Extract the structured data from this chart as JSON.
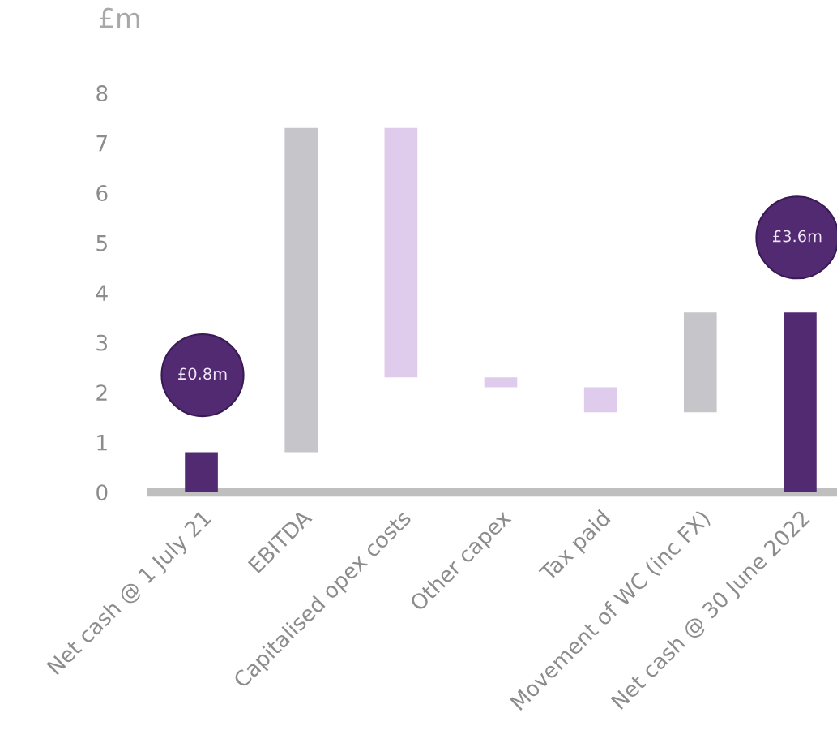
{
  "chart_data": {
    "type": "bar",
    "ylabel": "£m",
    "categories": [
      "Net cash @ 1 July 21",
      "EBITDA",
      "Capitalised opex costs",
      "Other capex",
      "Tax paid",
      "Movement of WC (inc FX)",
      "Net cash @ 30 June 2022"
    ],
    "base": [
      0,
      0.8,
      7.3,
      2.3,
      2.1,
      1.6,
      0
    ],
    "values": [
      0.8,
      6.5,
      -5.0,
      -0.2,
      -0.5,
      2.0,
      3.6
    ],
    "colors": [
      "#522a72",
      "#c5c5ca",
      "#dfcbec",
      "#dfcbec",
      "#dfcbec",
      "#c5c5ca",
      "#522a72"
    ],
    "annotations": [
      "£0.8m",
      "£3.6m"
    ],
    "ylim": [
      0,
      8
    ],
    "yticks": [
      0,
      1,
      2,
      3,
      4,
      5,
      6,
      7,
      8
    ],
    "grid": false,
    "legend": false
  }
}
